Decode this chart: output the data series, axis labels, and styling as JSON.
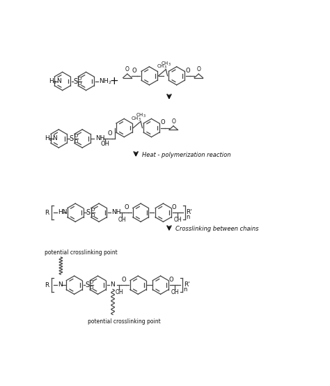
{
  "bg_color": "#ffffff",
  "line_color": "#444444",
  "text_color": "#111111",
  "arrow_color": "#111111",
  "fig_width": 4.74,
  "fig_height": 5.54,
  "dpi": 100,
  "label_heat": "Heat - polymerization reaction",
  "label_crosslink": "Crosslinking between chains",
  "label_potential1": "potential crosslinking point",
  "label_potential2": "potential crosslinking point"
}
